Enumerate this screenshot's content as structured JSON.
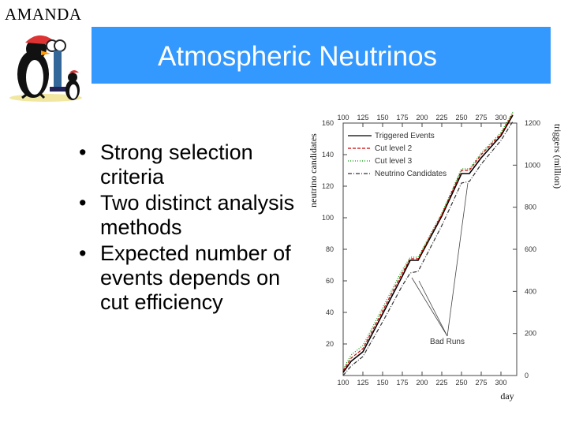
{
  "brand": "AMANDA",
  "slide": {
    "title": "Atmospheric Neutrinos"
  },
  "bullets": [
    "Strong selection criteria",
    "Two distinct analysis methods",
    "Expected number of events depends on cut efficiency"
  ],
  "colors": {
    "title_bg": "#3399ff",
    "title_text": "#ffffff"
  },
  "chart_data": {
    "type": "line",
    "xlabel": "day",
    "ylabel_left": "neutrino candidates",
    "ylabel_right": "triggers (million)",
    "xlim": [
      100,
      320
    ],
    "ylim_left": [
      0,
      160
    ],
    "ylim_right": [
      0,
      1200
    ],
    "x_ticks": [
      "100",
      "125",
      "150",
      "175",
      "200",
      "225",
      "250",
      "275",
      "300"
    ],
    "y_left_ticks": [
      "0",
      "20",
      "40",
      "60",
      "80",
      "100",
      "120",
      "140",
      "160"
    ],
    "y_left_ticks_shown": [
      "",
      "20",
      "40",
      "60",
      "80",
      "100",
      "120",
      "140",
      "160"
    ],
    "y_right_ticks": [
      "0",
      "200",
      "400",
      "600",
      "800",
      "1000",
      "1200"
    ],
    "legend": [
      "Triggered Events",
      "Cut level 2",
      "Cut level 3",
      "Neutrino Candidates"
    ],
    "annotation": "Bad Runs",
    "series": [
      {
        "name": "Triggered Events",
        "style": "solid",
        "color": "#000000",
        "x": [
          100,
          110,
          125,
          150,
          175,
          185,
          195,
          225,
          250,
          260,
          275,
          300,
          315
        ],
        "y": [
          2,
          9,
          15,
          39,
          63,
          73,
          73,
          101,
          128,
          128,
          138,
          152,
          165
        ]
      },
      {
        "name": "Cut level 2",
        "style": "dashed",
        "color": "#cc0000",
        "x": [
          100,
          110,
          125,
          150,
          175,
          185,
          195,
          225,
          250,
          260,
          275,
          300,
          315
        ],
        "y": [
          3,
          11,
          17,
          41,
          65,
          74,
          74,
          102,
          130,
          130,
          140,
          153,
          166
        ]
      },
      {
        "name": "Cut level 3",
        "style": "dotted",
        "color": "#009900",
        "x": [
          100,
          110,
          125,
          150,
          175,
          185,
          195,
          225,
          250,
          260,
          275,
          300,
          315
        ],
        "y": [
          4,
          13,
          19,
          43,
          67,
          75,
          75,
          103,
          131,
          131,
          141,
          154,
          167
        ]
      },
      {
        "name": "Neutrino Candidates",
        "style": "dashdot",
        "color": "#333333",
        "x": [
          100,
          110,
          125,
          150,
          175,
          185,
          195,
          225,
          250,
          260,
          275,
          300,
          315
        ],
        "y": [
          0,
          6,
          12,
          34,
          57,
          65,
          66,
          95,
          122,
          123,
          134,
          149,
          161
        ]
      }
    ]
  }
}
